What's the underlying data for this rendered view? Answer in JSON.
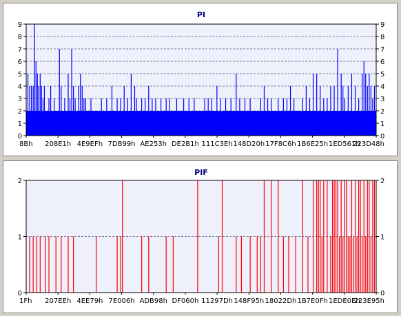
{
  "chart_data": [
    {
      "type": "bar",
      "title": "PI",
      "color": "#0000ff",
      "ylim": [
        0,
        9
      ],
      "yticks": [
        0,
        1,
        2,
        3,
        4,
        5,
        6,
        7,
        8,
        9
      ],
      "xticks": [
        "8Bh",
        "208E1h",
        "4E9EFh",
        "7DB99h",
        "AE253h",
        "DE2B1h",
        "111C3Eh",
        "148D20h",
        "17F8C6h",
        "1B6E25h",
        "1ED561h",
        "223D48h"
      ],
      "grid": "dashed horizontal",
      "baseline": 2,
      "spikes": [
        [
          0.005,
          5
        ],
        [
          0.01,
          4
        ],
        [
          0.015,
          4
        ],
        [
          0.02,
          4
        ],
        [
          0.024,
          9
        ],
        [
          0.028,
          6
        ],
        [
          0.032,
          5
        ],
        [
          0.036,
          4
        ],
        [
          0.04,
          5
        ],
        [
          0.044,
          4
        ],
        [
          0.048,
          3
        ],
        [
          0.052,
          4
        ],
        [
          0.065,
          3
        ],
        [
          0.07,
          4
        ],
        [
          0.08,
          3
        ],
        [
          0.095,
          7
        ],
        [
          0.1,
          4
        ],
        [
          0.11,
          3
        ],
        [
          0.12,
          5
        ],
        [
          0.125,
          3
        ],
        [
          0.13,
          7
        ],
        [
          0.135,
          4
        ],
        [
          0.14,
          3
        ],
        [
          0.15,
          4
        ],
        [
          0.155,
          5
        ],
        [
          0.16,
          4
        ],
        [
          0.165,
          3
        ],
        [
          0.17,
          3
        ],
        [
          0.185,
          3
        ],
        [
          0.2,
          2
        ],
        [
          0.215,
          3
        ],
        [
          0.23,
          3
        ],
        [
          0.245,
          4
        ],
        [
          0.26,
          3
        ],
        [
          0.27,
          3
        ],
        [
          0.28,
          4
        ],
        [
          0.29,
          3
        ],
        [
          0.3,
          5
        ],
        [
          0.31,
          4
        ],
        [
          0.315,
          3
        ],
        [
          0.33,
          3
        ],
        [
          0.34,
          3
        ],
        [
          0.35,
          4
        ],
        [
          0.36,
          3
        ],
        [
          0.37,
          3
        ],
        [
          0.385,
          3
        ],
        [
          0.4,
          3
        ],
        [
          0.41,
          3
        ],
        [
          0.43,
          3
        ],
        [
          0.45,
          3
        ],
        [
          0.465,
          3
        ],
        [
          0.48,
          3
        ],
        [
          0.495,
          2
        ],
        [
          0.51,
          3
        ],
        [
          0.52,
          3
        ],
        [
          0.53,
          3
        ],
        [
          0.545,
          4
        ],
        [
          0.555,
          3
        ],
        [
          0.57,
          3
        ],
        [
          0.585,
          3
        ],
        [
          0.6,
          5
        ],
        [
          0.61,
          3
        ],
        [
          0.625,
          3
        ],
        [
          0.64,
          3
        ],
        [
          0.655,
          2
        ],
        [
          0.67,
          3
        ],
        [
          0.68,
          4
        ],
        [
          0.69,
          3
        ],
        [
          0.7,
          3
        ],
        [
          0.71,
          2
        ],
        [
          0.72,
          3
        ],
        [
          0.735,
          3
        ],
        [
          0.745,
          3
        ],
        [
          0.755,
          4
        ],
        [
          0.765,
          3
        ],
        [
          0.775,
          2
        ],
        [
          0.79,
          3
        ],
        [
          0.8,
          4
        ],
        [
          0.81,
          3
        ],
        [
          0.82,
          5
        ],
        [
          0.83,
          5
        ],
        [
          0.84,
          4
        ],
        [
          0.85,
          3
        ],
        [
          0.86,
          3
        ],
        [
          0.87,
          4
        ],
        [
          0.88,
          4
        ],
        [
          0.89,
          7
        ],
        [
          0.9,
          5
        ],
        [
          0.905,
          4
        ],
        [
          0.91,
          3
        ],
        [
          0.92,
          4
        ],
        [
          0.93,
          5
        ],
        [
          0.94,
          4
        ],
        [
          0.95,
          3
        ],
        [
          0.96,
          5
        ],
        [
          0.965,
          6
        ],
        [
          0.97,
          5
        ],
        [
          0.975,
          4
        ],
        [
          0.98,
          5
        ],
        [
          0.985,
          4
        ],
        [
          0.99,
          3
        ],
        [
          0.995,
          4
        ]
      ]
    },
    {
      "type": "bar",
      "title": "PIF",
      "color": "#ff0000",
      "ylim": [
        0,
        2
      ],
      "yticks": [
        0,
        1,
        2
      ],
      "xticks": [
        "1Fh",
        "207EEh",
        "4EE79h",
        "7E006h",
        "ADB98h",
        "DF060h",
        "11297Dh",
        "148F95h",
        "18022Dh",
        "1B7E0Fh",
        "1EDE0Eh",
        "223E95h"
      ],
      "grid": "dashed horizontal",
      "spikes": [
        [
          0.01,
          1
        ],
        [
          0.02,
          1
        ],
        [
          0.03,
          1
        ],
        [
          0.04,
          1
        ],
        [
          0.055,
          1
        ],
        [
          0.065,
          1
        ],
        [
          0.085,
          1
        ],
        [
          0.1,
          1
        ],
        [
          0.12,
          1
        ],
        [
          0.135,
          1
        ],
        [
          0.2,
          1
        ],
        [
          0.26,
          1
        ],
        [
          0.27,
          1
        ],
        [
          0.275,
          2
        ],
        [
          0.33,
          1
        ],
        [
          0.35,
          1
        ],
        [
          0.4,
          1
        ],
        [
          0.42,
          1
        ],
        [
          0.49,
          2
        ],
        [
          0.55,
          1
        ],
        [
          0.56,
          2
        ],
        [
          0.6,
          1
        ],
        [
          0.615,
          1
        ],
        [
          0.64,
          1
        ],
        [
          0.66,
          1
        ],
        [
          0.67,
          1
        ],
        [
          0.68,
          2
        ],
        [
          0.7,
          2
        ],
        [
          0.72,
          2
        ],
        [
          0.735,
          1
        ],
        [
          0.75,
          1
        ],
        [
          0.77,
          1
        ],
        [
          0.79,
          2
        ],
        [
          0.805,
          1
        ],
        [
          0.82,
          2
        ],
        [
          0.83,
          2
        ],
        [
          0.835,
          2
        ],
        [
          0.84,
          2
        ],
        [
          0.845,
          1
        ],
        [
          0.85,
          2
        ],
        [
          0.86,
          2
        ],
        [
          0.87,
          1
        ],
        [
          0.875,
          2
        ],
        [
          0.88,
          2
        ],
        [
          0.885,
          2
        ],
        [
          0.89,
          2
        ],
        [
          0.895,
          1
        ],
        [
          0.9,
          2
        ],
        [
          0.905,
          1
        ],
        [
          0.91,
          2
        ],
        [
          0.915,
          2
        ],
        [
          0.92,
          1
        ],
        [
          0.925,
          1
        ],
        [
          0.93,
          2
        ],
        [
          0.935,
          1
        ],
        [
          0.94,
          2
        ],
        [
          0.945,
          1
        ],
        [
          0.95,
          2
        ],
        [
          0.955,
          2
        ],
        [
          0.96,
          1
        ],
        [
          0.965,
          2
        ],
        [
          0.97,
          1
        ],
        [
          0.975,
          2
        ],
        [
          0.98,
          2
        ],
        [
          0.985,
          1
        ],
        [
          0.99,
          2
        ],
        [
          0.995,
          2
        ]
      ]
    }
  ]
}
